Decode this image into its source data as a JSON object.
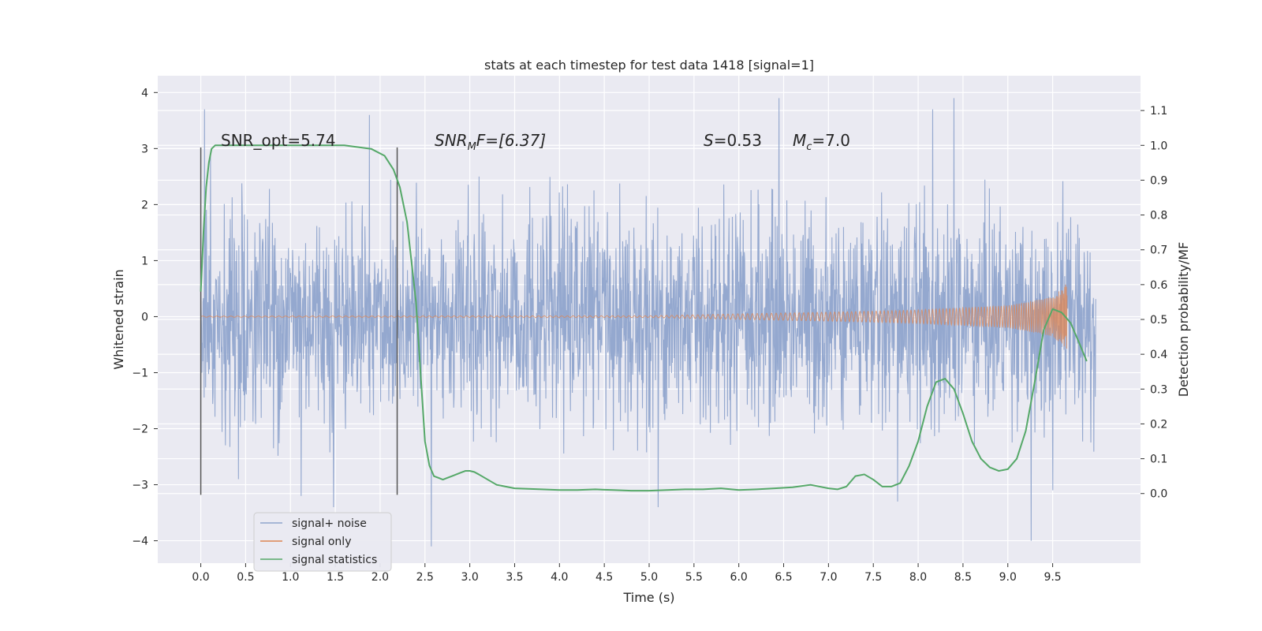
{
  "chart_data": {
    "type": "line",
    "title": "stats at each timestep for test data 1418 [signal=1]",
    "xlabel": "Time (s)",
    "ylabel_left": "Whitened strain",
    "ylabel_right": "Detection probability/MF",
    "xlim": [
      -0.48,
      10.48
    ],
    "ylim_left": [
      -4.4,
      4.3
    ],
    "ylim_right": [
      -0.2,
      1.2
    ],
    "x_ticks": [
      "0.0",
      "0.5",
      "1.0",
      "1.5",
      "2.0",
      "2.5",
      "3.0",
      "3.5",
      "4.0",
      "4.5",
      "5.0",
      "5.5",
      "6.0",
      "6.5",
      "7.0",
      "7.5",
      "8.0",
      "8.5",
      "9.0",
      "9.5"
    ],
    "y_ticks_left": [
      "4",
      "3",
      "2",
      "1",
      "0",
      "−1",
      "−2",
      "−3",
      "−4"
    ],
    "y_ticks_right": [
      "1.1",
      "1.0",
      "0.9",
      "0.8",
      "0.7",
      "0.6",
      "0.5",
      "0.4",
      "0.3",
      "0.2",
      "0.1",
      "0.0"
    ],
    "grid": true,
    "legend_position": "lower-left",
    "annotations": {
      "snr_opt": "SNR_opt=5.74",
      "snr_mf": "SNR",
      "snr_mf_sub": "M",
      "snr_mf_tail": "F=[6.37]",
      "s_label": "S",
      "s_value": "=0.53",
      "mc_label": "M",
      "mc_sub": "c",
      "mc_value": "=7.0"
    },
    "vertical_markers_x": [
      0.0,
      2.19
    ],
    "series": [
      {
        "name": "signal+ noise",
        "color": "#8fa4cc",
        "x_range": [
          0.0,
          9.98
        ],
        "typical_envelope": [
          -1.9,
          2.0
        ],
        "notable_spikes": [
          [
            0.04,
            3.7
          ],
          [
            0.05,
            1.9
          ],
          [
            0.11,
            2.9
          ],
          [
            1.88,
            3.6
          ],
          [
            6.45,
            3.9
          ],
          [
            8.4,
            3.9
          ],
          [
            8.16,
            3.7
          ],
          [
            0.42,
            -2.9
          ],
          [
            1.12,
            -3.2
          ],
          [
            1.48,
            -3.4
          ],
          [
            2.57,
            -4.1
          ],
          [
            5.1,
            -3.4
          ],
          [
            7.77,
            -3.3
          ],
          [
            9.26,
            -4.0
          ],
          [
            9.5,
            -3.1
          ]
        ]
      },
      {
        "name": "signal only",
        "color": "#dd8452",
        "x_range": [
          0.0,
          9.66
        ],
        "envelope": [
          [
            0,
            0.01
          ],
          [
            5.0,
            0.015
          ],
          [
            6.0,
            0.05
          ],
          [
            7.0,
            0.08
          ],
          [
            8.0,
            0.12
          ],
          [
            9.0,
            0.2
          ],
          [
            9.5,
            0.35
          ],
          [
            9.66,
            0.6
          ]
        ]
      },
      {
        "name": "signal statistics",
        "color": "#55a868",
        "axis": "right",
        "x": [
          0.0,
          0.03,
          0.06,
          0.09,
          0.12,
          0.16,
          0.3,
          0.5,
          0.8,
          1.2,
          1.6,
          1.9,
          2.05,
          2.15,
          2.22,
          2.3,
          2.4,
          2.45,
          2.5,
          2.55,
          2.6,
          2.65,
          2.7,
          2.75,
          2.8,
          2.85,
          2.9,
          2.95,
          3.0,
          3.05,
          3.1,
          3.2,
          3.3,
          3.5,
          3.8,
          4.0,
          4.2,
          4.4,
          4.6,
          4.8,
          5.0,
          5.2,
          5.4,
          5.6,
          5.8,
          6.0,
          6.2,
          6.4,
          6.6,
          6.8,
          7.0,
          7.1,
          7.2,
          7.3,
          7.4,
          7.5,
          7.6,
          7.7,
          7.8,
          7.9,
          8.0,
          8.1,
          8.2,
          8.3,
          8.4,
          8.5,
          8.6,
          8.7,
          8.8,
          8.9,
          9.0,
          9.1,
          9.2,
          9.3,
          9.4,
          9.5,
          9.6,
          9.7,
          9.8,
          9.88
        ],
        "values": [
          0.58,
          0.75,
          0.88,
          0.95,
          0.99,
          1.0,
          1.0,
          1.0,
          1.0,
          1.0,
          1.0,
          0.99,
          0.97,
          0.93,
          0.88,
          0.78,
          0.55,
          0.35,
          0.15,
          0.08,
          0.05,
          0.045,
          0.04,
          0.045,
          0.05,
          0.055,
          0.06,
          0.065,
          0.065,
          0.062,
          0.055,
          0.04,
          0.025,
          0.015,
          0.012,
          0.01,
          0.01,
          0.012,
          0.01,
          0.008,
          0.008,
          0.01,
          0.012,
          0.012,
          0.015,
          0.01,
          0.012,
          0.015,
          0.018,
          0.025,
          0.015,
          0.012,
          0.02,
          0.05,
          0.055,
          0.04,
          0.02,
          0.02,
          0.03,
          0.08,
          0.15,
          0.25,
          0.32,
          0.33,
          0.3,
          0.23,
          0.15,
          0.1,
          0.075,
          0.065,
          0.07,
          0.1,
          0.18,
          0.32,
          0.47,
          0.53,
          0.52,
          0.49,
          0.43,
          0.38
        ]
      }
    ]
  }
}
